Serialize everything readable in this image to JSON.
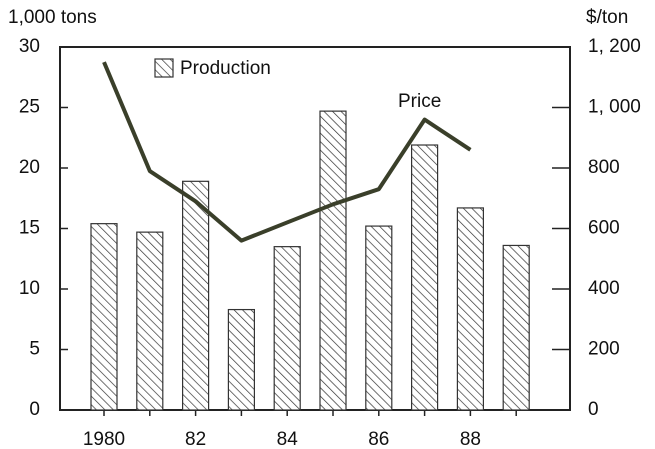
{
  "chart_data": {
    "type": "bar_line",
    "ylabel": "1,000  tons",
    "y2label": "$/ton",
    "categories": [
      "1980",
      null,
      "82",
      null,
      "84",
      null,
      "86",
      null,
      "88",
      null
    ],
    "series": [
      {
        "name": "Production",
        "type": "bar",
        "color": "#333333",
        "values": [
          15.4,
          14.7,
          18.9,
          8.3,
          13.5,
          24.7,
          15.2,
          21.9,
          16.7,
          13.6
        ]
      },
      {
        "name": "Price",
        "type": "line",
        "axis": "y2",
        "color": "#3a3f2a",
        "values": [
          1150,
          790,
          690,
          560,
          620,
          680,
          730,
          960,
          860,
          null
        ]
      }
    ],
    "ylim": [
      0,
      30
    ],
    "yticks": [
      0,
      5,
      10,
      15,
      20,
      25,
      30
    ],
    "y2lim": [
      0,
      1200
    ],
    "y2ticks": [
      0,
      200,
      400,
      600,
      800,
      {
        "value": 1000,
        "label": "1, 000"
      },
      {
        "value": 1200,
        "label": "1, 200"
      }
    ]
  }
}
